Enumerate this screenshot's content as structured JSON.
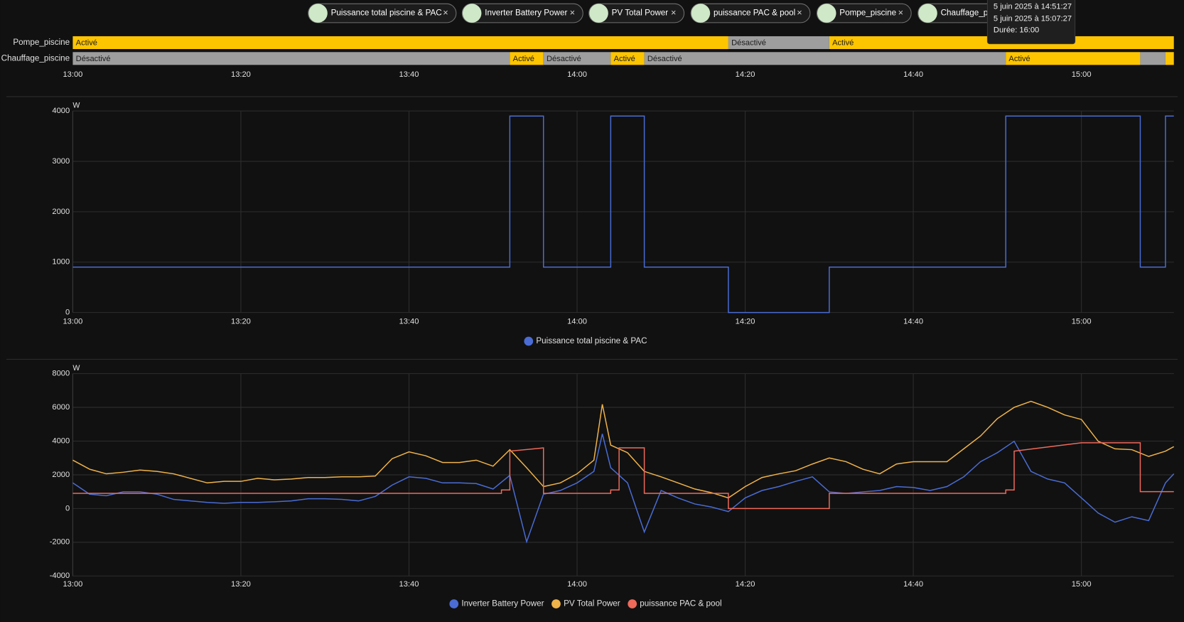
{
  "chips": [
    "Puissance total piscine & PAC",
    "Inverter Battery Power",
    "PV Total Power",
    "puissance PAC & pool",
    "Pompe_piscine",
    "Chauffage_piscine"
  ],
  "tooltip": [
    "5 juin 2025 à 14:51:27",
    "5 juin 2025 à 15:07:27",
    "Durée: 16:00"
  ],
  "timeline": {
    "xlim": [
      "13:00",
      "15:11"
    ],
    "xticks": [
      "13:00",
      "13:20",
      "13:40",
      "14:00",
      "14:20",
      "14:40",
      "15:00"
    ],
    "rows": [
      {
        "name": "Pompe_piscine",
        "segments": [
          {
            "label": "Activé",
            "start": "13:00",
            "end": "14:18",
            "color": "#fdc500"
          },
          {
            "label": "Désactivé",
            "start": "14:18",
            "end": "14:30",
            "color": "#9e9e9e"
          },
          {
            "label": "Activé",
            "start": "14:30",
            "end": "15:11",
            "color": "#fdc500"
          }
        ]
      },
      {
        "name": "Chauffage_piscine",
        "segments": [
          {
            "label": "Désactivé",
            "start": "13:00",
            "end": "13:52",
            "color": "#9e9e9e"
          },
          {
            "label": "Activé",
            "start": "13:52",
            "end": "13:56",
            "color": "#fdc500"
          },
          {
            "label": "Désactivé",
            "start": "13:56",
            "end": "14:04",
            "color": "#9e9e9e"
          },
          {
            "label": "Activé",
            "start": "14:04",
            "end": "14:08",
            "color": "#fdc500"
          },
          {
            "label": "Désactivé",
            "start": "14:08",
            "end": "14:51",
            "color": "#9e9e9e"
          },
          {
            "label": "Activé",
            "start": "14:51",
            "end": "15:07",
            "color": "#fdc500"
          },
          {
            "label": null,
            "start": "15:07",
            "end": "15:10",
            "color": "#9e9e9e"
          },
          {
            "label": null,
            "start": "15:10",
            "end": "15:11",
            "color": "#fdc500"
          }
        ]
      }
    ]
  },
  "chart_data": [
    {
      "type": "line",
      "unit": "W",
      "xlim": [
        "13:00",
        "15:11"
      ],
      "xticks": [
        "13:00",
        "13:20",
        "13:40",
        "14:00",
        "14:20",
        "14:40",
        "15:00"
      ],
      "ylim": [
        0,
        4000
      ],
      "yticks": [
        0,
        1000,
        2000,
        3000,
        4000
      ],
      "grid": true,
      "series": [
        {
          "name": "Puissance total piscine & PAC",
          "color": "#4a6cd4",
          "x": [
            "13:00",
            "13:52",
            "13:52",
            "13:56",
            "13:56",
            "14:04",
            "14:04",
            "14:08",
            "14:08",
            "14:18",
            "14:18",
            "14:30",
            "14:30",
            "14:51",
            "14:51",
            "15:07",
            "15:07",
            "15:10",
            "15:10",
            "15:11"
          ],
          "values": [
            900,
            900,
            3900,
            3900,
            900,
            900,
            3900,
            3900,
            900,
            900,
            0,
            0,
            900,
            900,
            3900,
            3900,
            900,
            900,
            3900,
            3900
          ]
        }
      ]
    },
    {
      "type": "line",
      "unit": "W",
      "xlim": [
        "13:00",
        "15:11"
      ],
      "xticks": [
        "13:00",
        "13:20",
        "13:40",
        "14:00",
        "14:20",
        "14:40",
        "15:00"
      ],
      "ylim": [
        -4000,
        8000
      ],
      "yticks": [
        -4000,
        -2000,
        0,
        2000,
        4000,
        6000,
        8000
      ],
      "grid": true,
      "series": [
        {
          "name": "Inverter Battery Power",
          "color": "#4a6cd4",
          "x": [
            "13:00",
            "13:02",
            "13:04",
            "13:06",
            "13:08",
            "13:10",
            "13:12",
            "13:14",
            "13:16",
            "13:18",
            "13:20",
            "13:22",
            "13:24",
            "13:26",
            "13:28",
            "13:30",
            "13:32",
            "13:34",
            "13:36",
            "13:38",
            "13:40",
            "13:42",
            "13:44",
            "13:46",
            "13:48",
            "13:50",
            "13:52",
            "13:54",
            "13:56",
            "13:58",
            "14:00",
            "14:02",
            "14:03",
            "14:04",
            "14:06",
            "14:08",
            "14:10",
            "14:12",
            "14:14",
            "14:16",
            "14:18",
            "14:20",
            "14:22",
            "14:24",
            "14:26",
            "14:28",
            "14:30",
            "14:32",
            "14:34",
            "14:36",
            "14:38",
            "14:40",
            "14:42",
            "14:44",
            "14:46",
            "14:48",
            "14:50",
            "14:52",
            "14:54",
            "14:56",
            "14:58",
            "15:00",
            "15:02",
            "15:04",
            "15:06",
            "15:08",
            "15:10",
            "15:11"
          ],
          "values": [
            1520,
            850,
            760,
            990,
            990,
            850,
            540,
            450,
            360,
            310,
            360,
            360,
            400,
            450,
            580,
            580,
            540,
            450,
            720,
            1390,
            1880,
            1790,
            1520,
            1520,
            1480,
            1160,
            1970,
            -1970,
            850,
            1070,
            1520,
            2200,
            4430,
            2420,
            1520,
            -1390,
            1070,
            630,
            270,
            90,
            -180,
            630,
            1070,
            1300,
            1610,
            1880,
            990,
            900,
            990,
            1070,
            1300,
            1250,
            1070,
            1300,
            1880,
            2780,
            3310,
            3990,
            2200,
            1750,
            1520,
            630,
            -270,
            -810,
            -490,
            -720,
            1520,
            2060
          ]
        },
        {
          "name": "PV Total Power",
          "color": "#f0b34a",
          "x": [
            "13:00",
            "13:02",
            "13:04",
            "13:06",
            "13:08",
            "13:10",
            "13:12",
            "13:14",
            "13:16",
            "13:18",
            "13:20",
            "13:22",
            "13:24",
            "13:26",
            "13:28",
            "13:30",
            "13:32",
            "13:34",
            "13:36",
            "13:38",
            "13:40",
            "13:42",
            "13:44",
            "13:46",
            "13:48",
            "13:50",
            "13:52",
            "13:54",
            "13:56",
            "13:58",
            "14:00",
            "14:02",
            "14:03",
            "14:04",
            "14:06",
            "14:08",
            "14:10",
            "14:12",
            "14:14",
            "14:16",
            "14:18",
            "14:20",
            "14:22",
            "14:24",
            "14:26",
            "14:28",
            "14:30",
            "14:32",
            "14:34",
            "14:36",
            "14:38",
            "14:40",
            "14:42",
            "14:44",
            "14:46",
            "14:48",
            "14:50",
            "14:52",
            "14:54",
            "14:56",
            "14:58",
            "15:00",
            "15:02",
            "15:04",
            "15:06",
            "15:08",
            "15:10",
            "15:11"
          ],
          "values": [
            2870,
            2330,
            2060,
            2150,
            2280,
            2200,
            2060,
            1790,
            1520,
            1610,
            1610,
            1790,
            1700,
            1750,
            1840,
            1840,
            1880,
            1880,
            1930,
            2960,
            3360,
            3130,
            2730,
            2730,
            2870,
            2510,
            3490,
            2420,
            1300,
            1520,
            2060,
            2870,
            6180,
            3760,
            3310,
            2200,
            1880,
            1520,
            1160,
            940,
            630,
            1300,
            1840,
            2060,
            2240,
            2640,
            3000,
            2780,
            2330,
            2060,
            2640,
            2780,
            2780,
            2780,
            3540,
            4300,
            5330,
            6000,
            6360,
            6000,
            5550,
            5280,
            3990,
            3540,
            3490,
            3090,
            3400,
            3670
          ]
        },
        {
          "name": "puissance PAC & pool",
          "color": "#ef6a5a",
          "x": [
            "13:00",
            "13:51",
            "13:51",
            "13:52",
            "13:52",
            "13:56",
            "13:56",
            "14:04",
            "14:04",
            "14:05",
            "14:05",
            "14:08",
            "14:08",
            "14:18",
            "14:18",
            "14:30",
            "14:30",
            "14:51",
            "14:51",
            "14:52",
            "14:52",
            "15:00",
            "15:07",
            "15:07",
            "15:11"
          ],
          "values": [
            900,
            900,
            1100,
            1100,
            3400,
            3600,
            900,
            900,
            1100,
            1100,
            3600,
            3600,
            900,
            900,
            0,
            0,
            900,
            900,
            1100,
            1100,
            3400,
            3900,
            3900,
            1000,
            1000
          ]
        }
      ]
    }
  ]
}
